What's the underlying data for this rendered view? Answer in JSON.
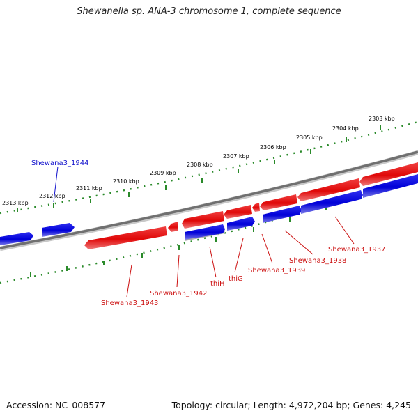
{
  "title": "Shewanella sp. ANA-3 chromosome 1, complete sequence",
  "footer": {
    "accession": "Accession: NC_008577",
    "summary": "Topology: circular; Length: 4,972,204 bp; Genes: 4,245"
  },
  "ticks": [
    "2313 kbp",
    "2312 kbp",
    "2311 kbp",
    "2310 kbp",
    "2309 kbp",
    "2308 kbp",
    "2307 kbp",
    "2306 kbp",
    "2305 kbp",
    "2304 kbp",
    "2303 kbp"
  ],
  "genes": [
    {
      "label": "Shewana3_1944",
      "strand": "forward",
      "color": "#1010cc"
    },
    {
      "label": "Shewana3_1943",
      "strand": "reverse",
      "color": "#cc1010"
    },
    {
      "label": "Shewana3_1942",
      "strand": "reverse",
      "color": "#cc1010"
    },
    {
      "label": "thiH",
      "strand": "reverse",
      "color": "#cc1010"
    },
    {
      "label": "thiG",
      "strand": "reverse",
      "color": "#cc1010"
    },
    {
      "label": "Shewana3_1939",
      "strand": "reverse",
      "color": "#cc1010"
    },
    {
      "label": "Shewana3_1938",
      "strand": "reverse",
      "color": "#cc1010"
    },
    {
      "label": "Shewana3_1937",
      "strand": "reverse",
      "color": "#cc1010"
    }
  ],
  "colors": {
    "forward": "#0a0ae0",
    "reverse": "#e01010",
    "tick": "#2a8a2a",
    "backbone": "#808080"
  }
}
